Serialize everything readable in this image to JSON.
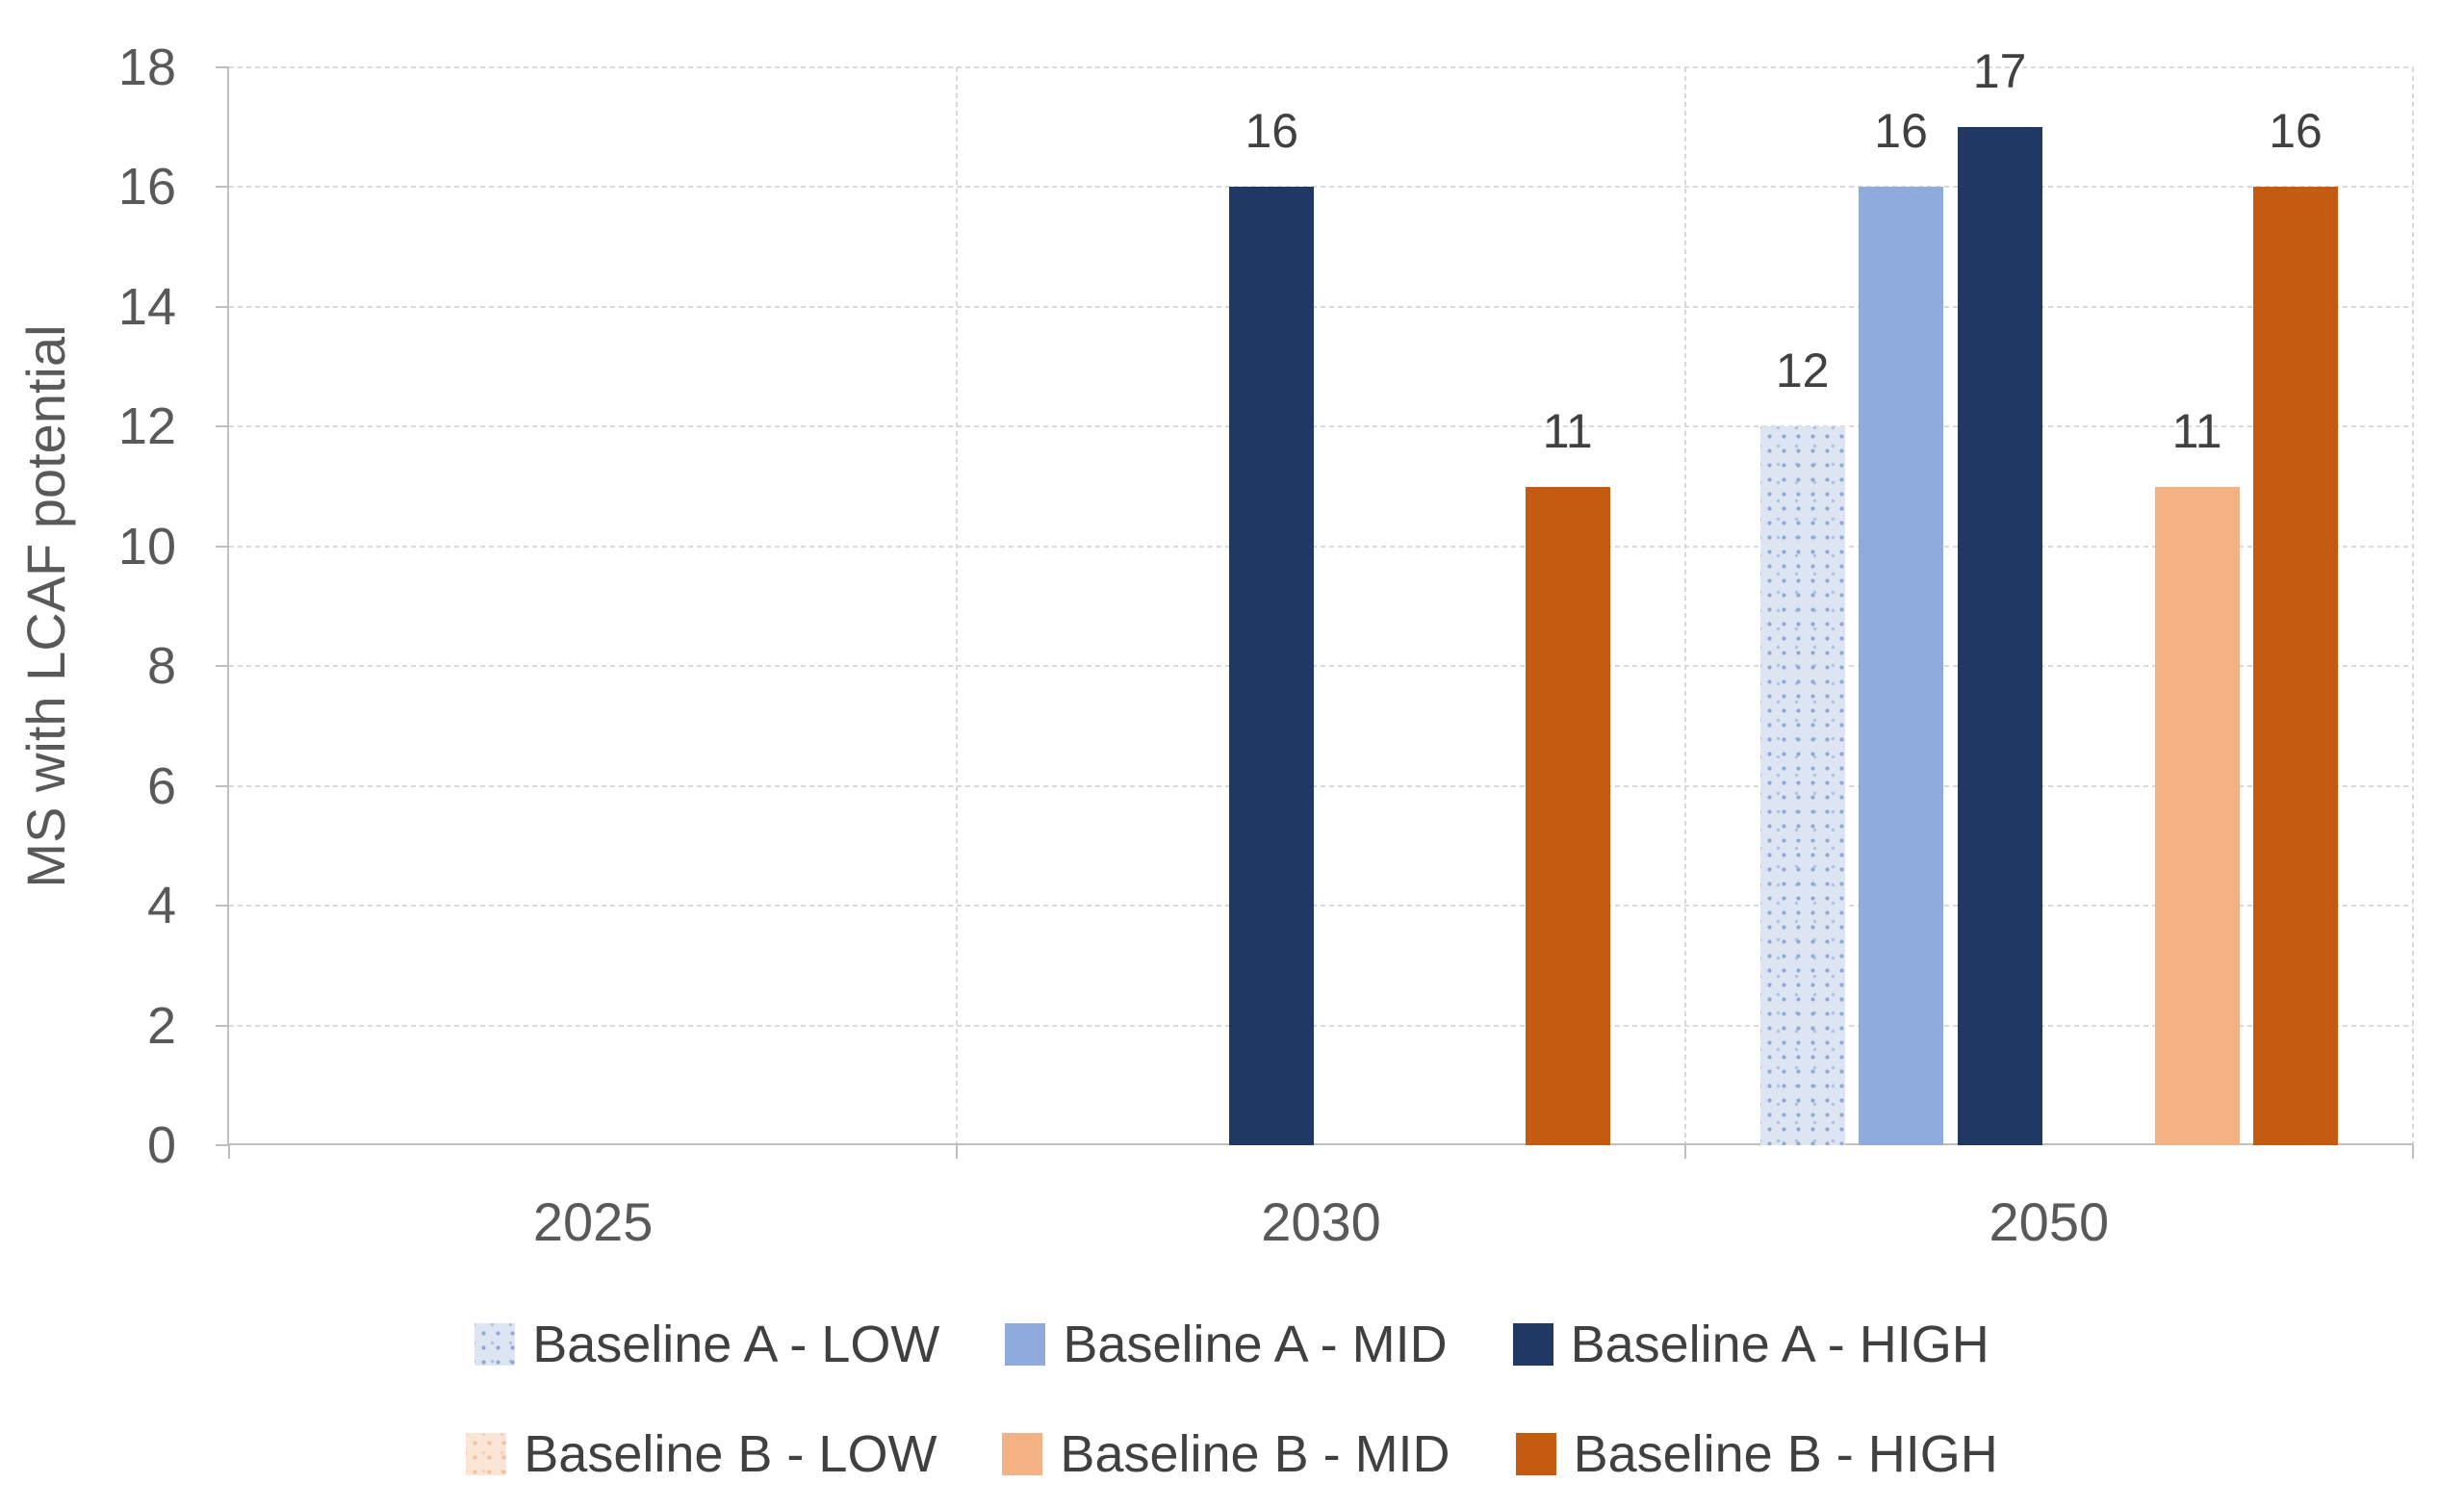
{
  "chart_data": {
    "type": "bar",
    "title": "",
    "ylabel": "MS with LCAF potential",
    "xlabel": "",
    "ylim": [
      0,
      18
    ],
    "yticks": [
      0,
      2,
      4,
      6,
      8,
      10,
      12,
      14,
      16,
      18
    ],
    "grid": true,
    "legend_position": "bottom",
    "categories": [
      "2025",
      "2030",
      "2050"
    ],
    "series": [
      {
        "name": "Baseline A - LOW",
        "color": "#dde5f3",
        "pattern": "dots",
        "dot_color": "#92a8d4",
        "values": [
          0,
          0,
          12
        ]
      },
      {
        "name": "Baseline A - MID",
        "color": "#8faadc",
        "values": [
          0,
          0,
          16
        ]
      },
      {
        "name": "Baseline A - HIGH",
        "color": "#1f3864",
        "values": [
          0,
          16,
          17
        ]
      },
      {
        "name": "Baseline B - LOW",
        "color": "#fbe5d6",
        "pattern": "dots",
        "dot_color": "#f0c2a0",
        "values": [
          0,
          0,
          0
        ]
      },
      {
        "name": "Baseline B - MID",
        "color": "#f4b183",
        "values": [
          0,
          0,
          11
        ]
      },
      {
        "name": "Baseline B - HIGH",
        "color": "#c55a11",
        "values": [
          0,
          11,
          16
        ]
      }
    ],
    "legend_rows": [
      [
        0,
        1,
        2
      ],
      [
        3,
        4,
        5
      ]
    ]
  },
  "style_colors": {
    "axis_text": "#595959",
    "data_label_text": "#404040",
    "legend_text": "#404040",
    "gridline": "#d9d9d9",
    "axis_line": "#bfbfbf",
    "background": "#ffffff"
  }
}
